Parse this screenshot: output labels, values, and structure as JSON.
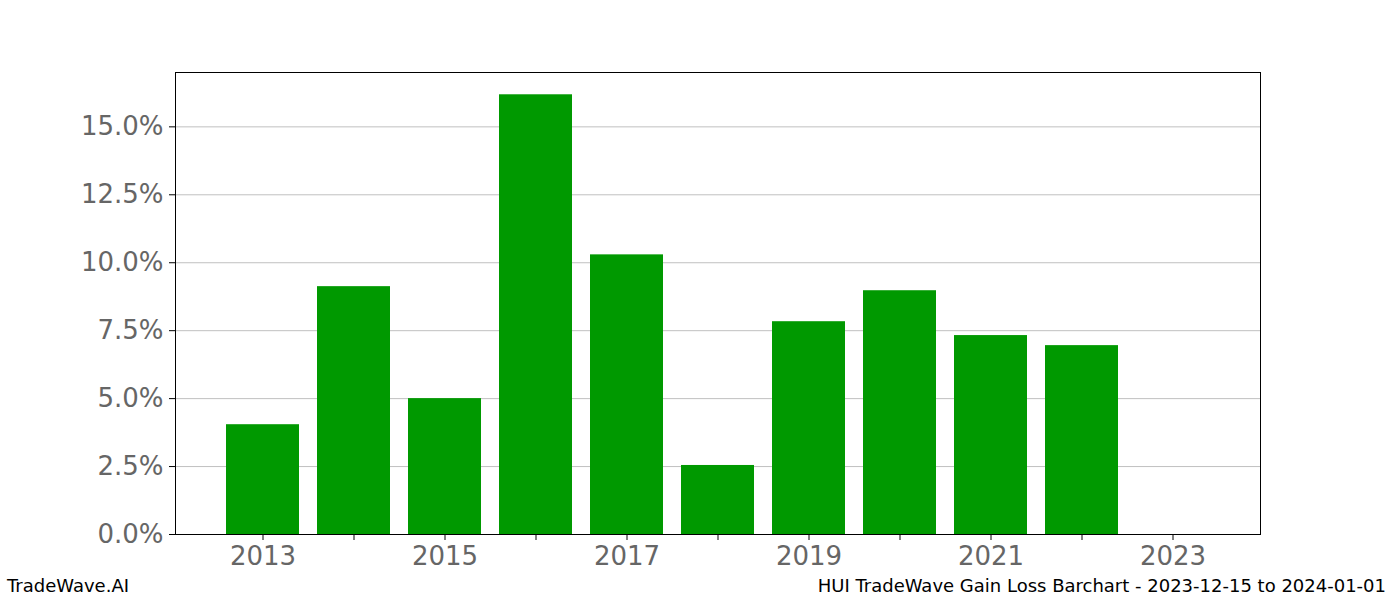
{
  "chart_data": {
    "type": "bar",
    "title": "HUI TradeWave Gain Loss Barchart - 2023-12-15 to 2024-01-01",
    "source": "TradeWave.AI",
    "categories": [
      "2013",
      null,
      "2015",
      null,
      "2017",
      null,
      "2019",
      null,
      "2021",
      null,
      "2023"
    ],
    "values": [
      4.04,
      9.12,
      5.0,
      16.18,
      10.29,
      2.54,
      7.83,
      8.97,
      7.32,
      6.95,
      null
    ],
    "color": "#009900",
    "ylim": [
      0,
      17
    ],
    "yticks": [
      {
        "value": 0,
        "label": "0.0%"
      },
      {
        "value": 2.5,
        "label": "2.5%"
      },
      {
        "value": 5,
        "label": "5.0%"
      },
      {
        "value": 7.5,
        "label": "7.5%"
      },
      {
        "value": 10,
        "label": "10.0%"
      },
      {
        "value": 12.5,
        "label": "12.5%"
      },
      {
        "value": 15,
        "label": "15.0%"
      }
    ],
    "grid": true
  }
}
